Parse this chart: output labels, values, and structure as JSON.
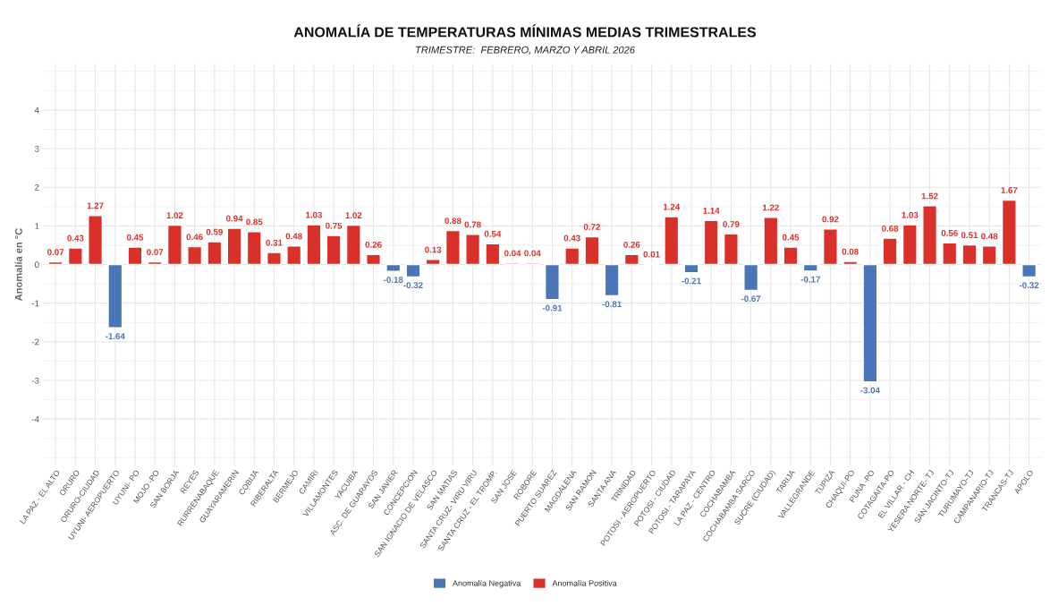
{
  "chart_data": {
    "type": "bar",
    "title": "ANOMALÍA DE TEMPERATURAS MÍNIMAS MEDIAS TRIMESTRALES",
    "subtitle": "TRIMESTRE:  FEBRERO, MARZO Y ABRIL 2026",
    "ylabel": "Anomalía en °C",
    "categories": [
      "LA PAZ - EL ALTO",
      "ORURO",
      "ORURO-CIUDAD",
      "UYUNI- AEROPUERTO",
      "UYUNI- PO",
      "MOJO -PO",
      "SAN BORJA",
      "REYES",
      "RURRENABAQUE",
      "GUAYARAMERIN",
      "COBIJA",
      "RIBERALTA",
      "BERMEJO",
      "CAMIRI",
      "VILLAMONTES",
      "YACUIBA",
      "ASC. DE GUARAYOS",
      "SAN JAVIER",
      "CONCEPCION",
      "SAN IGNACIO DE VELASCO",
      "SAN MATIAS",
      "SANTA CRUZ- VIRU VIRU",
      "SANTA CRUZ - EL TROMP.",
      "SAN JOSE",
      "ROBORE",
      "PUERTO SUAREZ",
      "MAGDALENA",
      "SAN RAMON",
      "SANTA ANA",
      "TRINIDAD",
      "POTOSI - AEROPUERTO",
      "POTOSI - CIUDAD",
      "POTOSI - TARAPAYA",
      "LA PAZ - CENTRO",
      "COCHABAMBA",
      "COCHABAMBA SARCO",
      "SUCRE (CIUDAD)",
      "TARIJA",
      "VALLEGRANDE",
      "TUPIZA",
      "CHAQUI-PO",
      "PUNA -PO",
      "COTAGAITA-PO",
      "EL VILLAR - CH",
      "YESERA NORTE- TJ",
      "SAN JACINTO-TJ",
      "TURUMAYO-TJ",
      "CAMPANARIO-TJ",
      "TRANCAS-TJ",
      "APOLO"
    ],
    "series": [
      {
        "name": "Anomalía Negativa",
        "color": "#4a76b8",
        "values": [
          null,
          null,
          null,
          -1.64,
          null,
          null,
          null,
          null,
          null,
          null,
          null,
          null,
          null,
          null,
          null,
          null,
          null,
          -0.18,
          -0.32,
          null,
          null,
          null,
          null,
          null,
          null,
          -0.91,
          null,
          null,
          -0.81,
          null,
          null,
          null,
          -0.21,
          null,
          null,
          -0.67,
          null,
          null,
          -0.17,
          null,
          null,
          -3.04,
          null,
          null,
          null,
          null,
          null,
          null,
          null,
          -0.32
        ]
      },
      {
        "name": "Anomalía Positiva",
        "color": "#d9302a",
        "values": [
          0.07,
          0.43,
          1.27,
          null,
          0.45,
          0.07,
          1.02,
          0.46,
          0.59,
          0.94,
          0.85,
          0.31,
          0.48,
          1.03,
          0.75,
          1.02,
          0.26,
          null,
          null,
          0.13,
          0.88,
          0.78,
          0.54,
          0.04,
          0.04,
          null,
          0.43,
          0.72,
          null,
          0.26,
          0.01,
          1.24,
          null,
          1.14,
          0.79,
          null,
          1.22,
          0.45,
          null,
          0.92,
          0.08,
          null,
          0.68,
          1.03,
          1.52,
          0.56,
          0.51,
          0.48,
          1.67,
          null
        ]
      }
    ],
    "stacked": true,
    "ylim": [
      -5.2,
      5.2
    ],
    "yticks": [
      {
        "value": -5,
        "label": null
      },
      {
        "value": -4.5,
        "label": null
      },
      -4,
      {
        "value": -3.5,
        "label": null
      },
      -3,
      {
        "value": -2.5,
        "label": null
      },
      -2,
      {
        "value": -1.5,
        "label": null
      },
      -1,
      {
        "value": -0.5,
        "label": null
      },
      0,
      {
        "value": 0.5,
        "label": null
      },
      1,
      {
        "value": 1.5,
        "label": null
      },
      2,
      {
        "value": 2.5,
        "label": null
      },
      3,
      {
        "value": 3.5,
        "label": null
      },
      4,
      {
        "value": 4.5,
        "label": null
      },
      {
        "value": 5,
        "label": null
      }
    ],
    "grid": true,
    "legend": "bottom",
    "data_labels": true
  }
}
